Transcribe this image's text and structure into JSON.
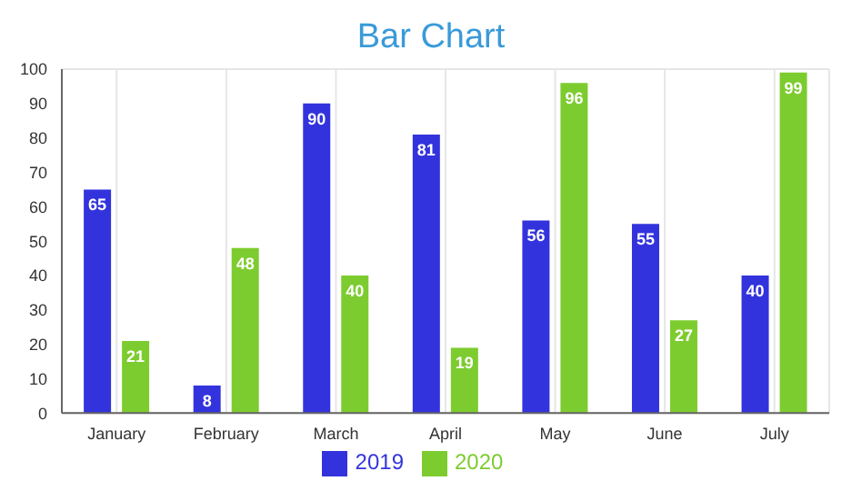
{
  "chart_data": {
    "type": "bar",
    "title": "Bar Chart",
    "categories": [
      "January",
      "February",
      "March",
      "April",
      "May",
      "June",
      "July"
    ],
    "series": [
      {
        "name": "2019",
        "color": "#3333dd",
        "values": [
          65,
          8,
          90,
          81,
          56,
          55,
          40
        ]
      },
      {
        "name": "2020",
        "color": "#7dcc2f",
        "values": [
          21,
          48,
          40,
          19,
          96,
          27,
          99
        ]
      }
    ],
    "ylim": [
      0,
      100
    ],
    "yticks": [
      0,
      10,
      20,
      30,
      40,
      50,
      60,
      70,
      80,
      90,
      100
    ],
    "grid": true,
    "legend": "bottom",
    "data_labels": true
  }
}
